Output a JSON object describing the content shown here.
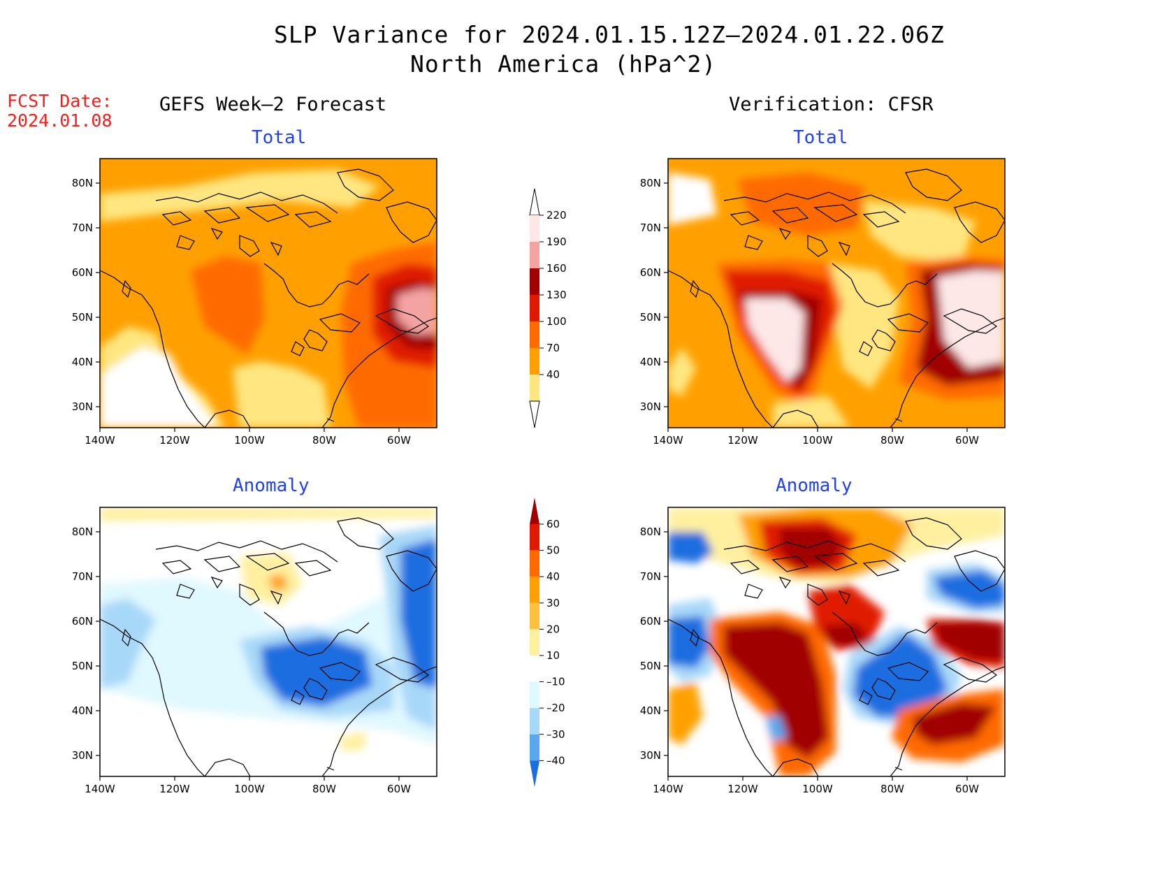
{
  "title": {
    "line1": "SLP Variance for 2024.01.15.12Z–2024.01.22.06Z",
    "line2": "North America (hPa^2)"
  },
  "fcst": {
    "line1": "FCST Date:",
    "line2": "2024.01.08"
  },
  "columns": {
    "left": "GEFS Week–2 Forecast",
    "right": "Verification: CFSR"
  },
  "subtitles": {
    "total_left": "Total",
    "total_right": "Total",
    "anom_left": "Anomaly",
    "anom_right": "Anomaly"
  },
  "axes": {
    "lat_labels": [
      "80N",
      "70N",
      "60N",
      "50N",
      "40N",
      "30N"
    ],
    "lon_labels": [
      "140W",
      "120W",
      "100W",
      "80W",
      "60W"
    ]
  },
  "colorbar_total": {
    "labels": [
      "220",
      "190",
      "160",
      "130",
      "100",
      "70",
      "40"
    ],
    "colors": [
      "#fde7e7",
      "#f4a3a3",
      "#a00000",
      "#e01a00",
      "#ff6a00",
      "#ffa000",
      "#ffe680"
    ]
  },
  "colorbar_anom": {
    "labels": [
      "60",
      "50",
      "40",
      "30",
      "20",
      "10",
      "–10",
      "–20",
      "–30",
      "–40"
    ],
    "colors": [
      "#a00000",
      "#e01a00",
      "#ff6a00",
      "#ffa000",
      "#ffc040",
      "#fff0a0",
      "#ffffff",
      "#e0f8ff",
      "#a8d8f8",
      "#58a8f0",
      "#1a6ee0"
    ]
  }
}
